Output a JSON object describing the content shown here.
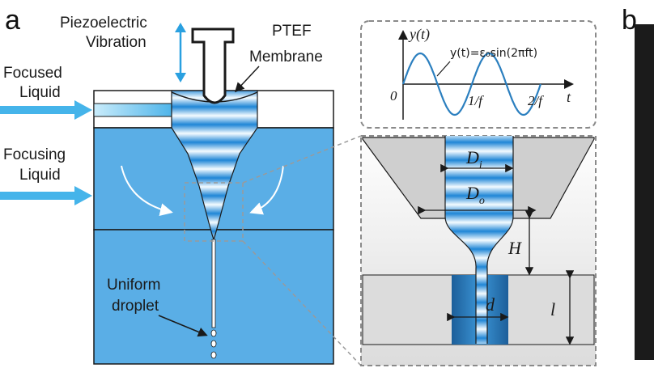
{
  "panels": {
    "a": "a",
    "b": "b"
  },
  "left": {
    "piezo_line1": "Piezoelectric",
    "piezo_line2": "Vibration",
    "membrane_line1": "PTEF",
    "membrane_line2": "Membrane",
    "focused_line1": "Focused",
    "focused_line2": "Liquid",
    "focusing_line1": "Focusing",
    "focusing_line2": "Liquid",
    "droplet_line1": "Uniform",
    "droplet_line2": "droplet"
  },
  "inset_wave": {
    "y_axis": "y(t)",
    "t_axis": "t",
    "origin": "0",
    "tick1": "1/f",
    "tick2": "2/f",
    "equation": "y(t)=ε₀sin(2πft)"
  },
  "inset_nozzle": {
    "d_i": "D",
    "d_i_sub": "i",
    "d_o": "D",
    "d_o_sub": "o",
    "h": "H",
    "d": "d",
    "l": "l"
  },
  "colors": {
    "water": "#5aaee6",
    "water_dark": "#2f7fc4",
    "band_light": "#e8f5ff",
    "gray": "#d0d0d0",
    "dashed": "#8a8a8a",
    "arrow_blue": "#2aa0e0"
  }
}
